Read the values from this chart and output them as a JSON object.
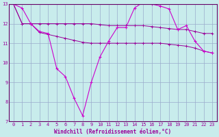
{
  "xlabel": "Windchill (Refroidissement éolien,°C)",
  "background_color": "#c8ecec",
  "grid_color": "#99aacc",
  "line_color": "#990099",
  "line_color2": "#cc00cc",
  "xlim_min": -0.5,
  "xlim_max": 23.5,
  "ylim_min": 7,
  "ylim_max": 13,
  "yticks": [
    7,
    8,
    9,
    10,
    11,
    12,
    13
  ],
  "xticks": [
    0,
    1,
    2,
    3,
    4,
    5,
    6,
    7,
    8,
    9,
    10,
    11,
    12,
    13,
    14,
    15,
    16,
    17,
    18,
    19,
    20,
    21,
    22,
    23
  ],
  "hours": [
    0,
    1,
    2,
    3,
    4,
    5,
    6,
    7,
    8,
    9,
    10,
    11,
    12,
    13,
    14,
    15,
    16,
    17,
    18,
    19,
    20,
    21,
    22,
    23
  ],
  "temp_line": [
    13.0,
    12.8,
    12.0,
    11.6,
    11.5,
    9.7,
    9.3,
    8.2,
    7.3,
    9.0,
    10.3,
    11.1,
    11.8,
    11.8,
    12.8,
    13.1,
    13.0,
    12.9,
    12.75,
    11.7,
    11.9,
    11.1,
    10.6,
    10.5
  ],
  "upper_line": [
    13.0,
    12.0,
    12.0,
    12.0,
    12.0,
    12.0,
    12.0,
    12.0,
    12.0,
    12.0,
    11.95,
    11.9,
    11.9,
    11.9,
    11.9,
    11.9,
    11.85,
    11.8,
    11.75,
    11.7,
    11.7,
    11.6,
    11.5,
    11.5
  ],
  "lower_line": [
    13.0,
    12.0,
    12.0,
    11.55,
    11.45,
    11.35,
    11.25,
    11.15,
    11.05,
    11.0,
    11.0,
    11.0,
    11.0,
    11.0,
    11.0,
    11.0,
    11.0,
    11.0,
    10.95,
    10.9,
    10.85,
    10.75,
    10.6,
    10.5
  ],
  "tick_fontsize": 5.0,
  "xlabel_fontsize": 5.5,
  "spine_color": "#660066"
}
